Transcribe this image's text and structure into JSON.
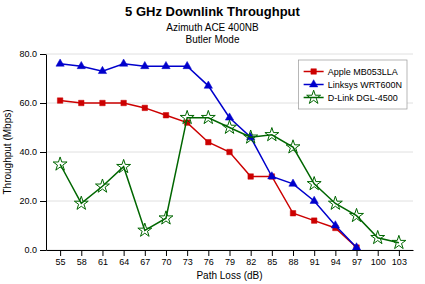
{
  "chart_data": {
    "type": "line",
    "title": "5 GHz Downlink Throughput",
    "subtitle": [
      "Azimuth ACE 400NB",
      "Butler Mode"
    ],
    "x_label": "Path Loss (dB)",
    "y_label": "Throughput (Mbps)",
    "x": [
      55,
      58,
      61,
      64,
      67,
      70,
      73,
      76,
      79,
      82,
      85,
      88,
      91,
      94,
      97,
      100,
      103
    ],
    "xlim": [
      53,
      105
    ],
    "xticks": [
      55,
      58,
      61,
      64,
      67,
      70,
      73,
      76,
      79,
      82,
      85,
      88,
      91,
      94,
      97,
      100,
      103
    ],
    "ylim": [
      0,
      80
    ],
    "yticks": [
      {
        "value": 0,
        "label": "0.0"
      },
      {
        "value": 20,
        "label": "20.0"
      },
      {
        "value": 40,
        "label": "40.0"
      },
      {
        "value": 60,
        "label": "60.0"
      },
      {
        "value": 80,
        "label": "80.0"
      }
    ],
    "grid": true,
    "legend": "upper right",
    "series": [
      {
        "name": "Apple MB053LLA",
        "color": "#cc0000",
        "marker": "square",
        "values": [
          61,
          60,
          60,
          60,
          58,
          55,
          52,
          44,
          40,
          30,
          30,
          15,
          12,
          9,
          1,
          null,
          null
        ]
      },
      {
        "name": "Linksys WRT600N",
        "color": "#0000cc",
        "marker": "triangle",
        "values": [
          76,
          75,
          73,
          76,
          75,
          75,
          75,
          67,
          54,
          46,
          30,
          27,
          20,
          10,
          1,
          null,
          null
        ]
      },
      {
        "name": "D-Link DGL-4500",
        "color": "#006600",
        "marker": "star",
        "values": [
          35,
          19,
          26,
          34,
          8,
          13,
          54,
          54,
          50,
          46,
          47,
          42,
          27,
          19,
          14,
          5,
          3
        ]
      }
    ]
  }
}
